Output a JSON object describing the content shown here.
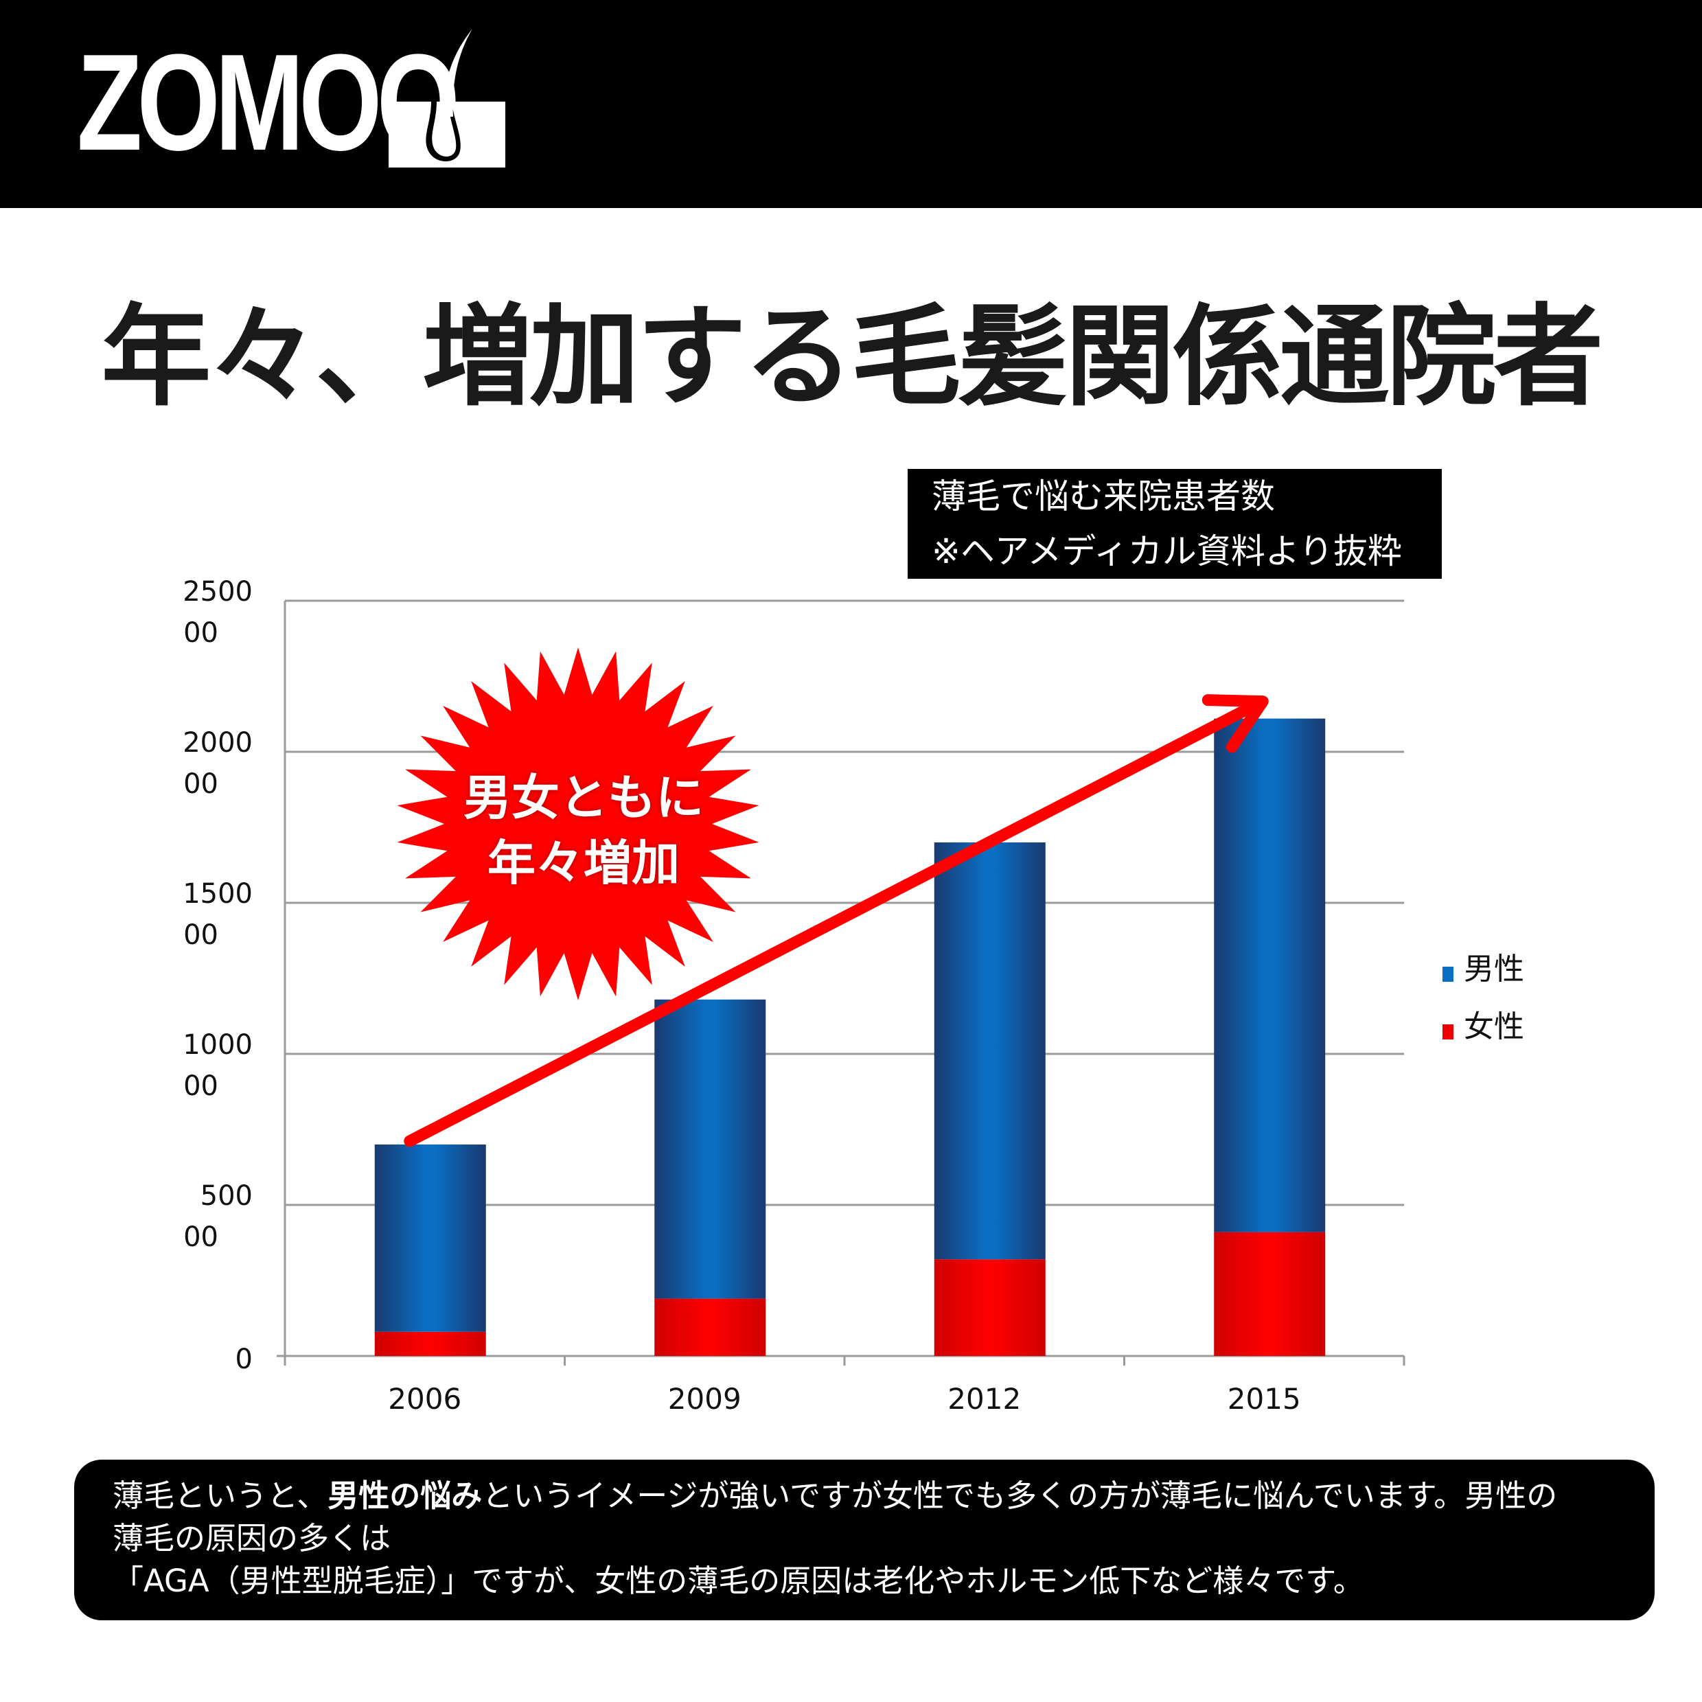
{
  "header": {
    "brand": "ZOMOO",
    "logo_icon": "hair-follicle-icon",
    "background": "#000000"
  },
  "title": "年々、増加する毛髪関係通院者",
  "source_note": {
    "line1": "薄毛で悩む来院患者数",
    "line2": "※ヘアメディカル資料より抜粋"
  },
  "burst": {
    "line1": "男女ともに",
    "line2": "年々増加",
    "color": "#ff0000"
  },
  "chart_data": {
    "type": "bar",
    "stacked": true,
    "categories": [
      "2006",
      "2009",
      "2012",
      "2015"
    ],
    "series": [
      {
        "name": "女性",
        "values": [
          8000,
          19000,
          32000,
          41000
        ],
        "color": "#ee0000"
      },
      {
        "name": "男性",
        "values": [
          62000,
          99000,
          138000,
          170000
        ],
        "color": "#0a6ec2"
      }
    ],
    "ylim": [
      0,
      250000
    ],
    "y_ticks": [
      {
        "value": 0,
        "label": [
          "0"
        ]
      },
      {
        "value": 50000,
        "label": [
          "500",
          "00"
        ]
      },
      {
        "value": 100000,
        "label": [
          "1000",
          "00"
        ]
      },
      {
        "value": 150000,
        "label": [
          "1500",
          "00"
        ]
      },
      {
        "value": 200000,
        "label": [
          "2000",
          "00"
        ]
      },
      {
        "value": 250000,
        "label": [
          "2500",
          "00"
        ]
      }
    ],
    "grid": true,
    "legend_position": "right",
    "trend_arrow": {
      "from": "2006",
      "to": "2015",
      "color": "#ff0000"
    }
  },
  "footer": {
    "seg1": "薄毛というと、",
    "seg2_bold": "男性の悩み",
    "seg3": "というイメージが強いですが女性でも多くの方が薄毛に悩んでいます。男性の",
    "line2": "薄毛の原因の多くは",
    "line3": "「AGA（男性型脱毛症）」ですが、女性の薄毛の原因は老化やホルモン低下など様々です。"
  }
}
